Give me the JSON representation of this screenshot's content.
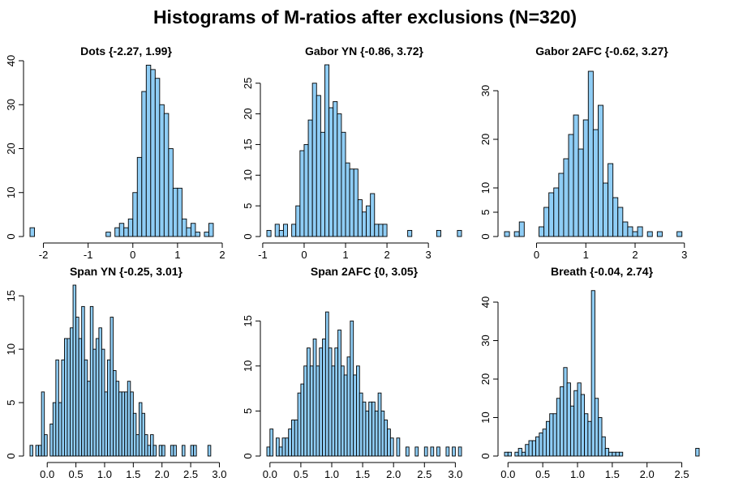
{
  "figure": {
    "title": "Histograms of M-ratios after exclusions (N=320)",
    "bar_color": "#8fcdf5",
    "bar_stroke": "#000000"
  },
  "chart_data": [
    {
      "type": "bar",
      "title": "Dots {-2.27, 1.99}",
      "xlim": [
        -2.3,
        2.0
      ],
      "ylim": [
        0,
        40
      ],
      "xticks": [
        -2,
        -1,
        0,
        1,
        2
      ],
      "yticks": [
        0,
        10,
        20,
        30,
        40
      ],
      "bin_edges_start": -2.3,
      "bin_width": 0.1,
      "counts": [
        2,
        0,
        0,
        0,
        0,
        0,
        0,
        0,
        0,
        0,
        0,
        0,
        0,
        0,
        0,
        0,
        0,
        1,
        0,
        2,
        3,
        2,
        4,
        10,
        18,
        33,
        39,
        38,
        36,
        30,
        28,
        20,
        11,
        11,
        4,
        2,
        3,
        1,
        0,
        1,
        3
      ]
    },
    {
      "type": "bar",
      "title": "Gabor YN {-0.86, 3.72}",
      "xlim": [
        -0.9,
        3.8
      ],
      "ylim": [
        0,
        28
      ],
      "xticks": [
        -1,
        0,
        1,
        2,
        3
      ],
      "yticks": [
        0,
        5,
        10,
        15,
        20,
        25
      ],
      "bin_edges_start": -0.9,
      "bin_width": 0.1,
      "counts": [
        1,
        0,
        2,
        1,
        2,
        0,
        2,
        5,
        14,
        15,
        19,
        25,
        23,
        17,
        28,
        21,
        22,
        20,
        17,
        12,
        11,
        11,
        6,
        4,
        5,
        7,
        2,
        2,
        2,
        0,
        0,
        0,
        0,
        0,
        1,
        0,
        0,
        0,
        0,
        0,
        0,
        1,
        0,
        0,
        0,
        0,
        1
      ]
    },
    {
      "type": "bar",
      "title": "Gabor 2AFC {-0.62, 3.27}",
      "xlim": [
        -0.65,
        3.3
      ],
      "ylim": [
        0,
        35
      ],
      "xticks": [
        0,
        1,
        2,
        3
      ],
      "yticks": [
        0,
        5,
        10,
        20,
        30
      ],
      "bin_edges_start": -0.65,
      "bin_width": 0.1,
      "counts": [
        1,
        0,
        1,
        3,
        0,
        0,
        0,
        2,
        6,
        9,
        10,
        13,
        16,
        21,
        25,
        18,
        24,
        34,
        22,
        27,
        11,
        15,
        8,
        6,
        3,
        2,
        1,
        2,
        0,
        1,
        0,
        1,
        0,
        0,
        0,
        1
      ]
    },
    {
      "type": "bar",
      "title": "Span YN {-0.25, 3.01}",
      "xlim": [
        -0.3,
        3.05
      ],
      "ylim": [
        0,
        16
      ],
      "xticks": [
        0.0,
        0.5,
        1.0,
        1.5,
        2.0,
        2.5,
        3.0
      ],
      "yticks": [
        0,
        5,
        10,
        15
      ],
      "bin_edges_start": -0.3,
      "bin_width": 0.05,
      "counts": [
        1,
        0,
        1,
        1,
        6,
        2,
        0,
        3,
        5,
        9,
        5,
        9,
        11,
        11,
        12,
        16,
        13,
        11,
        14,
        9,
        7,
        14,
        10,
        11,
        12,
        10,
        6,
        9,
        13,
        8,
        7,
        6,
        6,
        6,
        7,
        6,
        4,
        2,
        5,
        4,
        2,
        1,
        2,
        1,
        0,
        1,
        1,
        0,
        0,
        1,
        1,
        0,
        0,
        1,
        0,
        0,
        1,
        1,
        0,
        0,
        0,
        0,
        1
      ]
    },
    {
      "type": "bar",
      "title": "Span 2AFC {0, 3.05}",
      "xlim": [
        -0.05,
        3.1
      ],
      "ylim": [
        0,
        17
      ],
      "xticks": [
        0.0,
        0.5,
        1.0,
        1.5,
        2.0,
        2.5,
        3.0
      ],
      "yticks": [
        0,
        5,
        10,
        15
      ],
      "bin_edges_start": -0.05,
      "bin_width": 0.05,
      "counts": [
        1,
        3,
        0,
        2,
        1,
        2,
        2,
        3,
        4,
        4,
        7,
        8,
        10,
        12,
        10,
        13,
        10,
        12,
        13,
        16,
        12,
        10,
        12,
        14,
        10,
        9,
        11,
        15,
        9,
        10,
        7,
        6,
        5,
        6,
        6,
        5,
        7,
        5,
        4,
        3,
        2,
        0,
        2,
        0,
        0,
        1,
        0,
        0,
        1,
        0,
        0,
        1,
        0,
        1,
        0,
        1,
        0,
        0,
        1,
        0,
        1,
        0,
        1
      ]
    },
    {
      "type": "bar",
      "title": "Breath {-0.04, 2.74}",
      "xlim": [
        -0.05,
        2.75
      ],
      "ylim": [
        0,
        44
      ],
      "xticks": [
        0.0,
        0.5,
        1.0,
        1.5,
        2.0,
        2.5
      ],
      "yticks": [
        0,
        10,
        20,
        30,
        40
      ],
      "bin_edges_start": -0.05,
      "bin_width": 0.05,
      "counts": [
        1,
        1,
        0,
        1,
        2,
        1,
        3,
        4,
        4,
        5,
        6,
        7,
        9,
        11,
        11,
        15,
        18,
        23,
        19,
        13,
        17,
        19,
        16,
        11,
        9,
        43,
        15,
        10,
        5,
        2,
        1,
        1,
        1,
        1,
        0,
        0,
        0,
        0,
        0,
        0,
        0,
        0,
        0,
        0,
        0,
        0,
        0,
        0,
        0,
        0,
        0,
        0,
        0,
        0,
        0,
        2
      ]
    }
  ]
}
